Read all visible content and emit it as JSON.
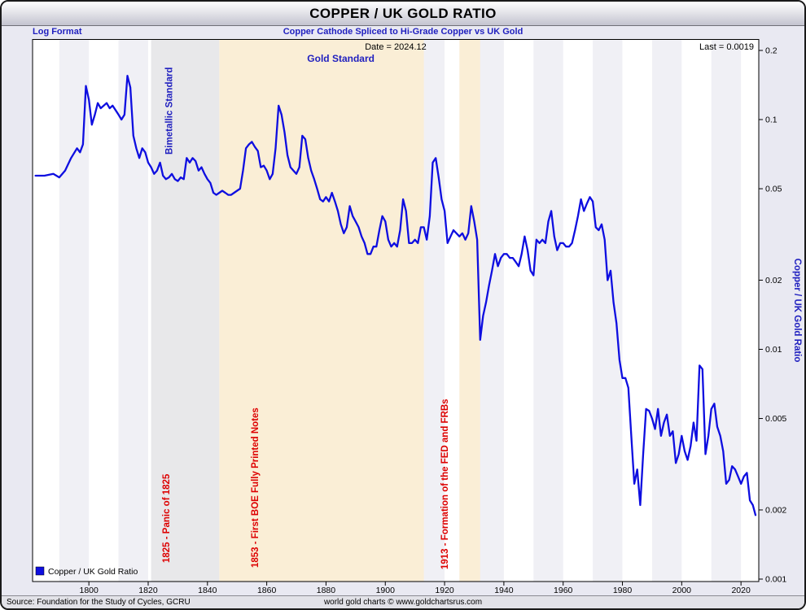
{
  "header": {
    "title": "COPPER / UK GOLD RATIO",
    "log_format_label": "Log Format",
    "subtitle": "Copper Cathode Spliced to Hi-Grade Copper vs UK Gold",
    "date_label": "Date = 2024.12",
    "last_label": "Last = 0.0019"
  },
  "footer": {
    "source": "Source: Foundation for the Study of Cycles, GCRU",
    "credit": "world gold charts © www.goldchartsrus.com"
  },
  "legend": {
    "label": "Copper / UK Gold Ratio"
  },
  "axes": {
    "y_right_label": "Copper / UK Gold Ratio",
    "y_scale": "log",
    "y_ticks": [
      0.2,
      0.1,
      0.05,
      0.02,
      0.01,
      0.005,
      0.002,
      0.001
    ],
    "y_tick_labels": [
      "0.2",
      "0.1",
      "0.05",
      "0.02",
      "0.01",
      "0.005",
      "0.002",
      "0.001"
    ],
    "x_ticks": [
      1800,
      1820,
      1840,
      1860,
      1880,
      1900,
      1920,
      1940,
      1960,
      1980,
      2000,
      2020
    ]
  },
  "style": {
    "accent_blue": "#1f1fbf",
    "annotation_red": "#dd0000",
    "line_color": "#0e0ee0",
    "stripe_color": "#f0f0f5",
    "band_gray": "#e8e8ea",
    "band_tan": "#faeed6"
  },
  "annotations": {
    "bands": [
      {
        "name": "bimetallic-era",
        "from": 1821,
        "to": 1844,
        "color": "#e8e8ea"
      },
      {
        "name": "gold-standard-era",
        "from": 1844,
        "to": 1913,
        "color": "#faeed6"
      },
      {
        "name": "gold-exchange-era",
        "from": 1925,
        "to": 1932,
        "color": "#faeed6"
      }
    ],
    "vertical_labels": [
      {
        "text": "Bimetallic Standard",
        "color": "#1f1fbf",
        "anchor_year": 1827,
        "y_bottom": 142
      },
      {
        "text": "1825 - Panic of 1825",
        "color": "#dd0000",
        "anchor_year": 1826,
        "y_bottom": 644
      },
      {
        "text": "1853 - First BOE Fully Printed Notes",
        "color": "#dd0000",
        "anchor_year": 1856,
        "y_bottom": 650
      },
      {
        "text": "1913 - Formation of the FED and FRBs",
        "color": "#dd0000",
        "anchor_year": 1920,
        "y_bottom": 652
      }
    ],
    "horizontal_labels": [
      {
        "text": "Gold Standard",
        "color": "#1f1fbf",
        "anchor_year": 1885,
        "y": 28
      }
    ]
  },
  "chart_data": {
    "type": "line",
    "title": "COPPER / UK GOLD RATIO",
    "subtitle": "Copper Cathode Spliced to Hi-Grade Copper vs UK Gold",
    "ylabel": "Copper / UK Gold Ratio",
    "y_scale": "log",
    "ylim": [
      0.001,
      0.224
    ],
    "x_range": [
      1781,
      2026
    ],
    "grid": false,
    "legend_position": "bottom-left",
    "series": [
      {
        "name": "Copper / UK Gold Ratio",
        "color": "#0e0ee0",
        "points": [
          [
            1782,
            0.057
          ],
          [
            1785,
            0.057
          ],
          [
            1788,
            0.058
          ],
          [
            1790,
            0.056
          ],
          [
            1792,
            0.06
          ],
          [
            1794,
            0.068
          ],
          [
            1796,
            0.075
          ],
          [
            1797,
            0.072
          ],
          [
            1798,
            0.078
          ],
          [
            1799,
            0.14
          ],
          [
            1800,
            0.122
          ],
          [
            1801,
            0.095
          ],
          [
            1802,
            0.105
          ],
          [
            1803,
            0.118
          ],
          [
            1804,
            0.112
          ],
          [
            1805,
            0.115
          ],
          [
            1806,
            0.118
          ],
          [
            1807,
            0.112
          ],
          [
            1808,
            0.115
          ],
          [
            1809,
            0.11
          ],
          [
            1810,
            0.105
          ],
          [
            1811,
            0.1
          ],
          [
            1812,
            0.105
          ],
          [
            1813,
            0.155
          ],
          [
            1814,
            0.138
          ],
          [
            1815,
            0.085
          ],
          [
            1816,
            0.075
          ],
          [
            1817,
            0.068
          ],
          [
            1818,
            0.075
          ],
          [
            1819,
            0.072
          ],
          [
            1820,
            0.065
          ],
          [
            1821,
            0.062
          ],
          [
            1822,
            0.058
          ],
          [
            1823,
            0.06
          ],
          [
            1824,
            0.065
          ],
          [
            1825,
            0.057
          ],
          [
            1826,
            0.055
          ],
          [
            1827,
            0.056
          ],
          [
            1828,
            0.058
          ],
          [
            1829,
            0.055
          ],
          [
            1830,
            0.054
          ],
          [
            1831,
            0.056
          ],
          [
            1832,
            0.055
          ],
          [
            1833,
            0.068
          ],
          [
            1834,
            0.065
          ],
          [
            1835,
            0.068
          ],
          [
            1836,
            0.066
          ],
          [
            1837,
            0.06
          ],
          [
            1838,
            0.062
          ],
          [
            1839,
            0.058
          ],
          [
            1840,
            0.055
          ],
          [
            1841,
            0.053
          ],
          [
            1842,
            0.048
          ],
          [
            1843,
            0.047
          ],
          [
            1844,
            0.048
          ],
          [
            1845,
            0.049
          ],
          [
            1846,
            0.048
          ],
          [
            1847,
            0.047
          ],
          [
            1848,
            0.047
          ],
          [
            1849,
            0.048
          ],
          [
            1850,
            0.049
          ],
          [
            1851,
            0.05
          ],
          [
            1852,
            0.06
          ],
          [
            1853,
            0.075
          ],
          [
            1854,
            0.078
          ],
          [
            1855,
            0.08
          ],
          [
            1856,
            0.076
          ],
          [
            1857,
            0.073
          ],
          [
            1858,
            0.062
          ],
          [
            1859,
            0.063
          ],
          [
            1860,
            0.06
          ],
          [
            1861,
            0.055
          ],
          [
            1862,
            0.058
          ],
          [
            1863,
            0.075
          ],
          [
            1864,
            0.115
          ],
          [
            1865,
            0.105
          ],
          [
            1866,
            0.088
          ],
          [
            1867,
            0.07
          ],
          [
            1868,
            0.062
          ],
          [
            1869,
            0.06
          ],
          [
            1870,
            0.058
          ],
          [
            1871,
            0.062
          ],
          [
            1872,
            0.085
          ],
          [
            1873,
            0.082
          ],
          [
            1874,
            0.068
          ],
          [
            1875,
            0.06
          ],
          [
            1876,
            0.055
          ],
          [
            1877,
            0.05
          ],
          [
            1878,
            0.045
          ],
          [
            1879,
            0.044
          ],
          [
            1880,
            0.046
          ],
          [
            1881,
            0.044
          ],
          [
            1882,
            0.048
          ],
          [
            1883,
            0.044
          ],
          [
            1884,
            0.04
          ],
          [
            1885,
            0.035
          ],
          [
            1886,
            0.032
          ],
          [
            1887,
            0.034
          ],
          [
            1888,
            0.042
          ],
          [
            1889,
            0.038
          ],
          [
            1890,
            0.036
          ],
          [
            1891,
            0.034
          ],
          [
            1892,
            0.031
          ],
          [
            1893,
            0.029
          ],
          [
            1894,
            0.026
          ],
          [
            1895,
            0.026
          ],
          [
            1896,
            0.028
          ],
          [
            1897,
            0.028
          ],
          [
            1898,
            0.033
          ],
          [
            1899,
            0.038
          ],
          [
            1900,
            0.036
          ],
          [
            1901,
            0.03
          ],
          [
            1902,
            0.028
          ],
          [
            1903,
            0.029
          ],
          [
            1904,
            0.028
          ],
          [
            1905,
            0.033
          ],
          [
            1906,
            0.045
          ],
          [
            1907,
            0.04
          ],
          [
            1908,
            0.029
          ],
          [
            1909,
            0.029
          ],
          [
            1910,
            0.03
          ],
          [
            1911,
            0.029
          ],
          [
            1912,
            0.034
          ],
          [
            1913,
            0.034
          ],
          [
            1914,
            0.03
          ],
          [
            1915,
            0.038
          ],
          [
            1916,
            0.065
          ],
          [
            1917,
            0.068
          ],
          [
            1918,
            0.056
          ],
          [
            1919,
            0.045
          ],
          [
            1920,
            0.04
          ],
          [
            1921,
            0.029
          ],
          [
            1922,
            0.031
          ],
          [
            1923,
            0.033
          ],
          [
            1924,
            0.032
          ],
          [
            1925,
            0.031
          ],
          [
            1926,
            0.032
          ],
          [
            1927,
            0.03
          ],
          [
            1928,
            0.032
          ],
          [
            1929,
            0.042
          ],
          [
            1930,
            0.036
          ],
          [
            1931,
            0.03
          ],
          [
            1932,
            0.011
          ],
          [
            1933,
            0.014
          ],
          [
            1934,
            0.016
          ],
          [
            1935,
            0.019
          ],
          [
            1936,
            0.022
          ],
          [
            1937,
            0.026
          ],
          [
            1938,
            0.023
          ],
          [
            1939,
            0.025
          ],
          [
            1940,
            0.026
          ],
          [
            1941,
            0.026
          ],
          [
            1942,
            0.025
          ],
          [
            1943,
            0.025
          ],
          [
            1944,
            0.024
          ],
          [
            1945,
            0.023
          ],
          [
            1946,
            0.026
          ],
          [
            1947,
            0.031
          ],
          [
            1948,
            0.027
          ],
          [
            1949,
            0.022
          ],
          [
            1950,
            0.021
          ],
          [
            1951,
            0.03
          ],
          [
            1952,
            0.029
          ],
          [
            1953,
            0.03
          ],
          [
            1954,
            0.029
          ],
          [
            1955,
            0.036
          ],
          [
            1956,
            0.04
          ],
          [
            1957,
            0.031
          ],
          [
            1958,
            0.027
          ],
          [
            1959,
            0.029
          ],
          [
            1960,
            0.029
          ],
          [
            1961,
            0.028
          ],
          [
            1962,
            0.028
          ],
          [
            1963,
            0.029
          ],
          [
            1964,
            0.033
          ],
          [
            1965,
            0.038
          ],
          [
            1966,
            0.045
          ],
          [
            1967,
            0.04
          ],
          [
            1968,
            0.043
          ],
          [
            1969,
            0.046
          ],
          [
            1970,
            0.044
          ],
          [
            1971,
            0.034
          ],
          [
            1972,
            0.033
          ],
          [
            1973,
            0.035
          ],
          [
            1974,
            0.03
          ],
          [
            1975,
            0.02
          ],
          [
            1976,
            0.022
          ],
          [
            1977,
            0.016
          ],
          [
            1978,
            0.013
          ],
          [
            1979,
            0.009
          ],
          [
            1980,
            0.0075
          ],
          [
            1981,
            0.0075
          ],
          [
            1982,
            0.0068
          ],
          [
            1983,
            0.0042
          ],
          [
            1984,
            0.0026
          ],
          [
            1985,
            0.003
          ],
          [
            1986,
            0.0021
          ],
          [
            1987,
            0.0035
          ],
          [
            1988,
            0.0055
          ],
          [
            1989,
            0.0054
          ],
          [
            1990,
            0.005
          ],
          [
            1991,
            0.0045
          ],
          [
            1992,
            0.0055
          ],
          [
            1993,
            0.0042
          ],
          [
            1994,
            0.0048
          ],
          [
            1995,
            0.0052
          ],
          [
            1996,
            0.0042
          ],
          [
            1997,
            0.0044
          ],
          [
            1998,
            0.0032
          ],
          [
            1999,
            0.0035
          ],
          [
            2000,
            0.0042
          ],
          [
            2001,
            0.0036
          ],
          [
            2002,
            0.0033
          ],
          [
            2003,
            0.0038
          ],
          [
            2004,
            0.0048
          ],
          [
            2005,
            0.004
          ],
          [
            2006,
            0.0085
          ],
          [
            2007,
            0.0082
          ],
          [
            2008,
            0.0035
          ],
          [
            2009,
            0.0042
          ],
          [
            2010,
            0.0055
          ],
          [
            2011,
            0.0058
          ],
          [
            2012,
            0.0046
          ],
          [
            2013,
            0.0042
          ],
          [
            2014,
            0.0036
          ],
          [
            2015,
            0.0026
          ],
          [
            2016,
            0.0027
          ],
          [
            2017,
            0.0031
          ],
          [
            2018,
            0.003
          ],
          [
            2019,
            0.0028
          ],
          [
            2020,
            0.0026
          ],
          [
            2021,
            0.0028
          ],
          [
            2022,
            0.0029
          ],
          [
            2023,
            0.0022
          ],
          [
            2024,
            0.0021
          ],
          [
            2024.9,
            0.0019
          ]
        ]
      }
    ]
  }
}
